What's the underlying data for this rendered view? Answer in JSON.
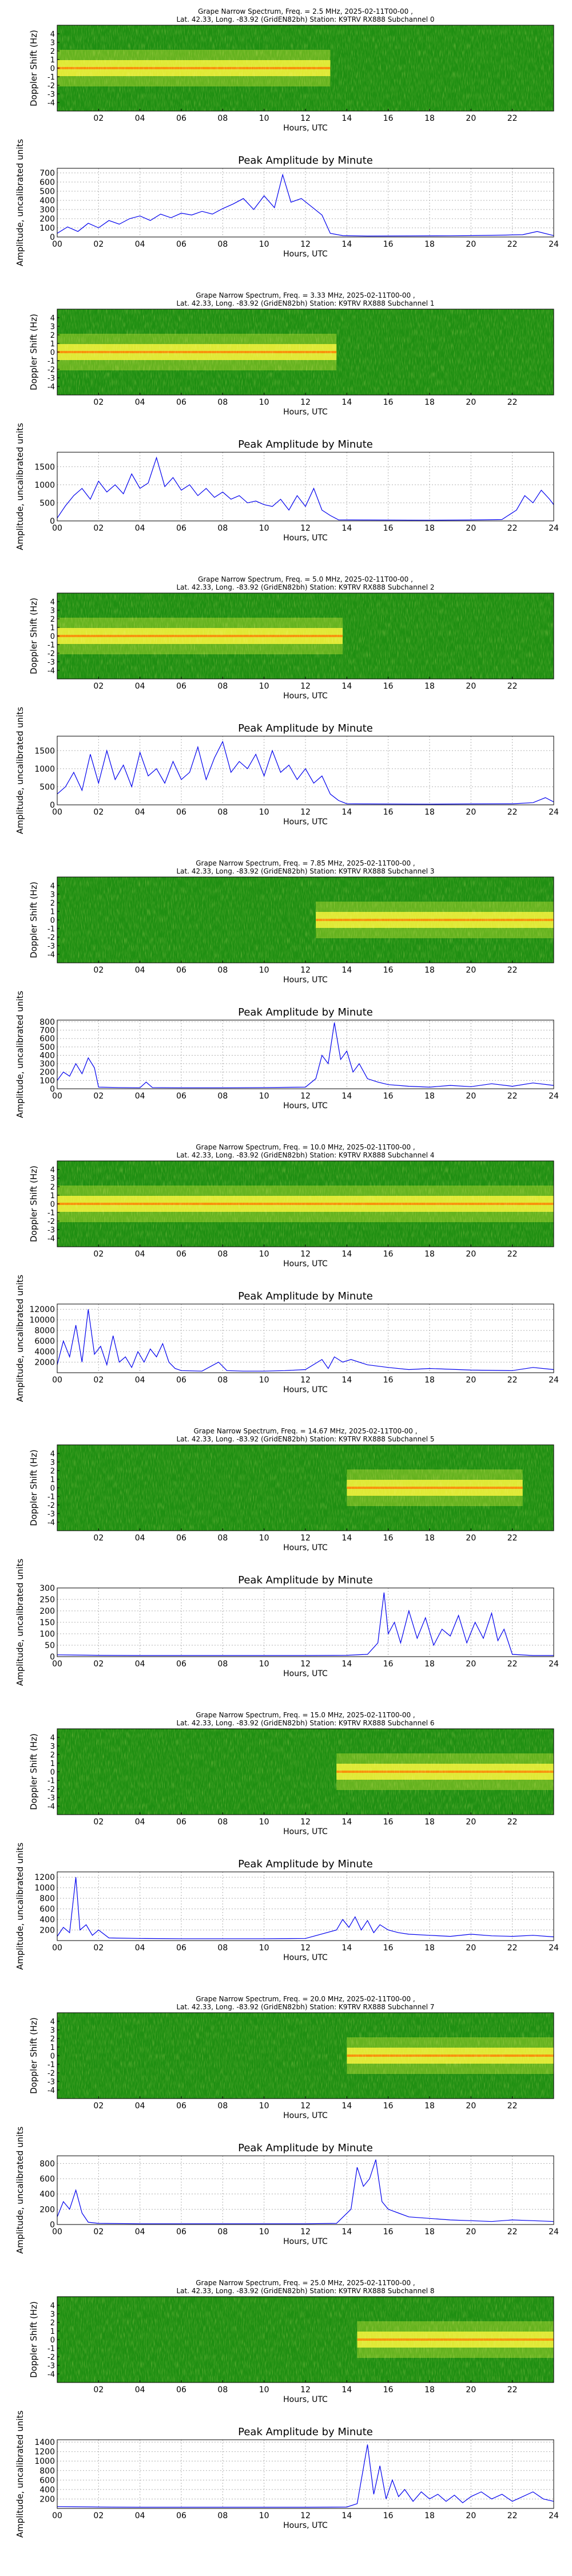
{
  "figure": {
    "spectrogram_ylabel": "Doppler Shift (Hz)",
    "spectrogram_xlabel": "Hours, UTC",
    "spectrogram_yticks": [
      "4",
      "3",
      "2",
      "1",
      "0",
      "-1",
      "-2",
      "-3",
      "-4"
    ],
    "spectrogram_xticks": [
      "02",
      "04",
      "06",
      "08",
      "10",
      "12",
      "14",
      "16",
      "18",
      "20",
      "22"
    ],
    "amp_title": "Peak Amplitude by Minute",
    "amp_xlabel": "Hours, UTC",
    "amp_ylabel": "Amplitude, uncalibrated units",
    "amp_xticks": [
      "00",
      "02",
      "04",
      "06",
      "08",
      "10",
      "12",
      "14",
      "16",
      "18",
      "20",
      "22",
      "24"
    ],
    "colors": {
      "line": "#0000ee",
      "grid": "#b0b0b0",
      "spec_bg": "#1f8f12",
      "spec_hot": "#f4f23a",
      "spec_peak": "#ff7a00"
    }
  },
  "chart_data": [
    {
      "type": "heatmap",
      "title": "Grape Narrow Spectrum, Freq. = 2.5 MHz, 2025-02-11T00-00 ,",
      "subtitle": "Lat.  42.33, Long. -83.92 (GridEN82bh) Station: K9TRV RX888 Subchannel 0",
      "xlabel": "Hours, UTC",
      "ylabel": "Doppler Shift (Hz)",
      "xlim": [
        0,
        24
      ],
      "ylim": [
        -5,
        5
      ],
      "active_hours": [
        0,
        13.2
      ]
    },
    {
      "type": "line",
      "title": "Peak Amplitude by Minute",
      "xlabel": "Hours, UTC",
      "ylabel": "Amplitude, uncalibrated units",
      "xlim": [
        0,
        24
      ],
      "ylim": [
        0,
        750
      ],
      "yticks": [
        0,
        100,
        200,
        300,
        400,
        500,
        600,
        700
      ],
      "series": [
        {
          "x": [
            0,
            0.5,
            1,
            1.5,
            2,
            2.5,
            3,
            3.5,
            4,
            4.5,
            5,
            5.5,
            6,
            6.5,
            7,
            7.5,
            8,
            8.5,
            9,
            9.5,
            10,
            10.5,
            10.9,
            11.3,
            11.8,
            12.3,
            12.8,
            13.2,
            13.8,
            15,
            17,
            19,
            21,
            22.5,
            23.2,
            24
          ],
          "values": [
            40,
            110,
            60,
            150,
            100,
            180,
            140,
            200,
            230,
            180,
            250,
            210,
            260,
            240,
            280,
            250,
            310,
            360,
            420,
            300,
            450,
            320,
            680,
            380,
            420,
            330,
            240,
            40,
            15,
            10,
            12,
            14,
            18,
            25,
            60,
            15
          ]
        }
      ]
    },
    {
      "type": "heatmap",
      "title": "Grape Narrow Spectrum, Freq. = 3.33 MHz, 2025-02-11T00-00 ,",
      "subtitle": "Lat.  42.33, Long. -83.92 (GridEN82bh) Station: K9TRV RX888 Subchannel 1",
      "xlabel": "Hours, UTC",
      "ylabel": "Doppler Shift (Hz)",
      "xlim": [
        0,
        24
      ],
      "ylim": [
        -5,
        5
      ],
      "active_hours": [
        0,
        13.5
      ]
    },
    {
      "type": "line",
      "title": "Peak Amplitude by Minute",
      "xlabel": "Hours, UTC",
      "ylabel": "Amplitude, uncalibrated units",
      "xlim": [
        0,
        24
      ],
      "ylim": [
        0,
        1900
      ],
      "yticks": [
        0,
        500,
        1000,
        1500
      ],
      "series": [
        {
          "x": [
            0,
            0.4,
            0.8,
            1.2,
            1.6,
            2,
            2.4,
            2.8,
            3.2,
            3.6,
            4,
            4.4,
            4.8,
            5.2,
            5.6,
            6,
            6.4,
            6.8,
            7.2,
            7.6,
            8,
            8.4,
            8.8,
            9.2,
            9.6,
            10,
            10.4,
            10.8,
            11.2,
            11.6,
            12,
            12.4,
            12.8,
            13.2,
            13.6,
            15,
            18,
            20,
            21.5,
            22.2,
            22.6,
            23,
            23.4,
            23.8,
            24
          ],
          "values": [
            80,
            420,
            700,
            900,
            600,
            1100,
            800,
            1000,
            750,
            1300,
            900,
            1050,
            1750,
            950,
            1200,
            850,
            1000,
            700,
            900,
            650,
            800,
            600,
            700,
            500,
            550,
            450,
            400,
            600,
            300,
            700,
            400,
            900,
            300,
            150,
            30,
            25,
            20,
            25,
            40,
            300,
            700,
            500,
            850,
            600,
            450
          ]
        }
      ]
    },
    {
      "type": "heatmap",
      "title": "Grape Narrow Spectrum, Freq. = 5.0 MHz, 2025-02-11T00-00 ,",
      "subtitle": "Lat.  42.33, Long. -83.92 (GridEN82bh) Station: K9TRV RX888 Subchannel 2",
      "xlabel": "Hours, UTC",
      "ylabel": "Doppler Shift (Hz)",
      "xlim": [
        0,
        24
      ],
      "ylim": [
        -5,
        5
      ],
      "active_hours": [
        0,
        13.8
      ]
    },
    {
      "type": "line",
      "title": "Peak Amplitude by Minute",
      "xlabel": "Hours, UTC",
      "ylabel": "Amplitude, uncalibrated units",
      "xlim": [
        0,
        24
      ],
      "ylim": [
        0,
        1900
      ],
      "yticks": [
        0,
        500,
        1000,
        1500
      ],
      "series": [
        {
          "x": [
            0,
            0.4,
            0.8,
            1.2,
            1.6,
            2,
            2.4,
            2.8,
            3.2,
            3.6,
            4,
            4.4,
            4.8,
            5.2,
            5.6,
            6,
            6.4,
            6.8,
            7.2,
            7.6,
            8,
            8.4,
            8.8,
            9.2,
            9.6,
            10,
            10.4,
            10.8,
            11.2,
            11.6,
            12,
            12.4,
            12.8,
            13.2,
            13.6,
            14,
            15,
            18,
            20,
            22,
            23,
            23.6,
            24
          ],
          "values": [
            300,
            500,
            900,
            400,
            1400,
            600,
            1500,
            700,
            1100,
            500,
            1450,
            800,
            1000,
            600,
            1200,
            700,
            900,
            1600,
            700,
            1300,
            1750,
            900,
            1200,
            1000,
            1400,
            800,
            1500,
            900,
            1100,
            700,
            1000,
            600,
            800,
            300,
            120,
            30,
            25,
            20,
            25,
            30,
            60,
            200,
            80
          ]
        }
      ]
    },
    {
      "type": "heatmap",
      "title": "Grape Narrow Spectrum, Freq. = 7.85 MHz, 2025-02-11T00-00 ,",
      "subtitle": "Lat.  42.33, Long. -83.92 (GridEN82bh) Station: K9TRV RX888 Subchannel 3",
      "xlabel": "Hours, UTC",
      "ylabel": "Doppler Shift (Hz)",
      "xlim": [
        0,
        24
      ],
      "ylim": [
        -5,
        5
      ],
      "active_hours": [
        12.5,
        24
      ]
    },
    {
      "type": "line",
      "title": "Peak Amplitude by Minute",
      "xlabel": "Hours, UTC",
      "ylabel": "Amplitude, uncalibrated units",
      "xlim": [
        0,
        24
      ],
      "ylim": [
        0,
        820
      ],
      "yticks": [
        0,
        100,
        200,
        300,
        400,
        500,
        600,
        700,
        800
      ],
      "series": [
        {
          "x": [
            0,
            0.3,
            0.6,
            0.9,
            1.2,
            1.5,
            1.8,
            2,
            3,
            4,
            4.3,
            4.6,
            6,
            8,
            10,
            12,
            12.5,
            12.8,
            13.1,
            13.4,
            13.7,
            14,
            14.3,
            14.6,
            15,
            15.5,
            16,
            17,
            18,
            19,
            20,
            21,
            22,
            23,
            24
          ],
          "values": [
            100,
            200,
            150,
            300,
            180,
            370,
            250,
            20,
            15,
            12,
            80,
            15,
            12,
            12,
            15,
            20,
            120,
            400,
            300,
            790,
            350,
            450,
            200,
            300,
            120,
            80,
            50,
            30,
            20,
            40,
            25,
            60,
            30,
            70,
            40
          ]
        }
      ]
    },
    {
      "type": "heatmap",
      "title": "Grape Narrow Spectrum, Freq. = 10.0 MHz, 2025-02-11T00-00 ,",
      "subtitle": "Lat.  42.33, Long. -83.92 (GridEN82bh) Station: K9TRV RX888 Subchannel 4",
      "xlabel": "Hours, UTC",
      "ylabel": "Doppler Shift (Hz)",
      "xlim": [
        0,
        24
      ],
      "ylim": [
        -5,
        5
      ],
      "active_hours": [
        0,
        24
      ]
    },
    {
      "type": "line",
      "title": "Peak Amplitude by Minute",
      "xlabel": "Hours, UTC",
      "ylabel": "Amplitude, uncalibrated units",
      "xlim": [
        0,
        24
      ],
      "ylim": [
        0,
        13000
      ],
      "yticks": [
        2000,
        4000,
        6000,
        8000,
        10000,
        12000
      ],
      "series": [
        {
          "x": [
            0,
            0.3,
            0.6,
            0.9,
            1.2,
            1.5,
            1.8,
            2.1,
            2.4,
            2.7,
            3,
            3.3,
            3.6,
            3.9,
            4.2,
            4.5,
            4.8,
            5.1,
            5.4,
            5.7,
            6,
            7,
            7.8,
            8.2,
            9,
            10,
            11,
            12,
            12.8,
            13.1,
            13.4,
            13.8,
            14.2,
            15,
            16,
            17,
            18,
            20,
            22,
            23,
            24
          ],
          "values": [
            1500,
            6000,
            3000,
            9000,
            2000,
            12000,
            3500,
            5000,
            1500,
            7000,
            2000,
            3000,
            1000,
            4000,
            2000,
            4500,
            3000,
            5500,
            2000,
            800,
            400,
            300,
            2000,
            400,
            300,
            300,
            400,
            600,
            2500,
            800,
            3000,
            2000,
            2500,
            1500,
            1000,
            600,
            800,
            500,
            400,
            1000,
            600
          ]
        }
      ]
    },
    {
      "type": "heatmap",
      "title": "Grape Narrow Spectrum, Freq. = 14.67 MHz, 2025-02-11T00-00 ,",
      "subtitle": "Lat.  42.33, Long. -83.92 (GridEN82bh) Station: K9TRV RX888 Subchannel 5",
      "xlabel": "Hours, UTC",
      "ylabel": "Doppler Shift (Hz)",
      "xlim": [
        0,
        24
      ],
      "ylim": [
        -5,
        5
      ],
      "active_hours": [
        14,
        22.5
      ]
    },
    {
      "type": "line",
      "title": "Peak Amplitude by Minute",
      "xlabel": "Hours, UTC",
      "ylabel": "Amplitude, uncalibrated units",
      "xlim": [
        0,
        24
      ],
      "ylim": [
        0,
        300
      ],
      "yticks": [
        0,
        50,
        100,
        150,
        200,
        250,
        300
      ],
      "series": [
        {
          "x": [
            0,
            2,
            4,
            6,
            8,
            10,
            12,
            14,
            15,
            15.5,
            15.8,
            16,
            16.3,
            16.6,
            17,
            17.4,
            17.8,
            18.2,
            18.6,
            19,
            19.4,
            19.8,
            20.2,
            20.6,
            21,
            21.3,
            21.6,
            22,
            23,
            24
          ],
          "values": [
            8,
            6,
            5,
            5,
            5,
            5,
            5,
            6,
            10,
            60,
            280,
            100,
            150,
            60,
            200,
            80,
            170,
            50,
            120,
            90,
            180,
            60,
            150,
            80,
            190,
            70,
            120,
            10,
            5,
            5
          ]
        }
      ]
    },
    {
      "type": "heatmap",
      "title": "Grape Narrow Spectrum, Freq. = 15.0 MHz, 2025-02-11T00-00 ,",
      "subtitle": "Lat.  42.33, Long. -83.92 (GridEN82bh) Station: K9TRV RX888 Subchannel 6",
      "xlabel": "Hours, UTC",
      "ylabel": "Doppler Shift (Hz)",
      "xlim": [
        0,
        24
      ],
      "ylim": [
        -5,
        5
      ],
      "active_hours": [
        13.5,
        24
      ]
    },
    {
      "type": "line",
      "title": "Peak Amplitude by Minute",
      "xlabel": "Hours, UTC",
      "ylabel": "Amplitude, uncalibrated units",
      "xlim": [
        0,
        24
      ],
      "ylim": [
        0,
        1300
      ],
      "yticks": [
        200,
        400,
        600,
        800,
        1000,
        1200
      ],
      "series": [
        {
          "x": [
            0,
            0.3,
            0.6,
            0.9,
            1.1,
            1.4,
            1.7,
            2,
            2.5,
            4,
            6,
            8,
            10,
            12,
            13.5,
            13.8,
            14.1,
            14.4,
            14.7,
            15,
            15.3,
            15.6,
            16,
            16.5,
            17,
            18,
            19,
            20,
            21,
            22,
            23,
            24
          ],
          "values": [
            80,
            250,
            150,
            1200,
            200,
            300,
            100,
            200,
            50,
            40,
            35,
            35,
            35,
            40,
            200,
            400,
            250,
            450,
            200,
            380,
            150,
            300,
            200,
            150,
            120,
            100,
            80,
            120,
            90,
            80,
            100,
            70
          ]
        }
      ]
    },
    {
      "type": "heatmap",
      "title": "Grape Narrow Spectrum, Freq. = 20.0 MHz, 2025-02-11T00-00 ,",
      "subtitle": "Lat.  42.33, Long. -83.92 (GridEN82bh) Station: K9TRV RX888 Subchannel 7",
      "xlabel": "Hours, UTC",
      "ylabel": "Doppler Shift (Hz)",
      "xlim": [
        0,
        24
      ],
      "ylim": [
        -5,
        5
      ],
      "active_hours": [
        14,
        24
      ]
    },
    {
      "type": "line",
      "title": "Peak Amplitude by Minute",
      "xlabel": "Hours, UTC",
      "ylabel": "Amplitude, uncalibrated units",
      "xlim": [
        0,
        24
      ],
      "ylim": [
        0,
        900
      ],
      "yticks": [
        0,
        200,
        400,
        600,
        800
      ],
      "series": [
        {
          "x": [
            0,
            0.3,
            0.6,
            0.9,
            1.2,
            1.5,
            2,
            4,
            6,
            8,
            10,
            12,
            13.5,
            14.2,
            14.5,
            14.8,
            15.1,
            15.4,
            15.7,
            16,
            16.5,
            17,
            18,
            19,
            20,
            21,
            22,
            23,
            24
          ],
          "values": [
            100,
            300,
            200,
            450,
            150,
            30,
            15,
            10,
            10,
            10,
            10,
            10,
            15,
            200,
            750,
            500,
            600,
            850,
            300,
            200,
            150,
            100,
            80,
            60,
            50,
            40,
            60,
            50,
            40
          ]
        }
      ]
    },
    {
      "type": "heatmap",
      "title": "Grape Narrow Spectrum, Freq. = 25.0 MHz, 2025-02-11T00-00 ,",
      "subtitle": "Lat.  42.33, Long. -83.92 (GridEN82bh) Station: K9TRV RX888 Subchannel 8",
      "xlabel": "Hours, UTC",
      "ylabel": "Doppler Shift (Hz)",
      "xlim": [
        0,
        24
      ],
      "ylim": [
        -5,
        5
      ],
      "active_hours": [
        14.5,
        24
      ]
    },
    {
      "type": "line",
      "title": "Peak Amplitude by Minute",
      "xlabel": "Hours, UTC",
      "ylabel": "Amplitude, uncalibrated units",
      "xlim": [
        0,
        24
      ],
      "ylim": [
        0,
        1450
      ],
      "yticks": [
        200,
        400,
        600,
        800,
        1000,
        1200,
        1400
      ],
      "series": [
        {
          "x": [
            0,
            2,
            4,
            6,
            8,
            10,
            12,
            14,
            14.5,
            15,
            15.3,
            15.6,
            15.9,
            16.2,
            16.5,
            16.8,
            17.2,
            17.6,
            18,
            18.4,
            18.8,
            19.2,
            19.6,
            20,
            20.5,
            21,
            21.5,
            22,
            22.5,
            23,
            23.5,
            24
          ],
          "values": [
            40,
            30,
            25,
            25,
            25,
            25,
            25,
            30,
            100,
            1350,
            300,
            900,
            200,
            600,
            250,
            400,
            150,
            350,
            200,
            300,
            150,
            280,
            120,
            250,
            350,
            200,
            300,
            150,
            250,
            350,
            200,
            150
          ]
        }
      ]
    }
  ]
}
